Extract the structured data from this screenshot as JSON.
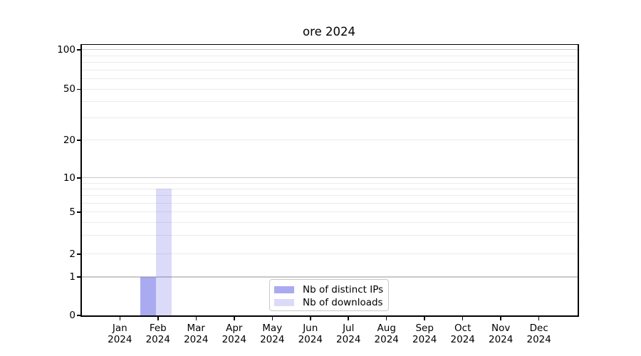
{
  "chart_data": {
    "type": "bar",
    "title": "ore 2024",
    "categories": [
      "Jan",
      "Feb",
      "Mar",
      "Apr",
      "May",
      "Jun",
      "Jul",
      "Aug",
      "Sep",
      "Oct",
      "Nov",
      "Dec"
    ],
    "x_tick_second_line": "2024",
    "series": [
      {
        "name": "Nb of distinct IPs",
        "color": "rgba(100,100,230,0.55)",
        "values": [
          0,
          1,
          0,
          0,
          0,
          0,
          0,
          0,
          0,
          0,
          0,
          0
        ]
      },
      {
        "name": "Nb of downloads",
        "color": "rgba(100,100,230,0.23)",
        "values": [
          0,
          8,
          0,
          0,
          0,
          0,
          0,
          0,
          0,
          0,
          0,
          0
        ]
      }
    ],
    "y_axis": {
      "scale": "symlog",
      "ticks": [
        0,
        1,
        2,
        5,
        10,
        20,
        50,
        100
      ],
      "minor_gridlines": [
        2,
        3,
        4,
        5,
        6,
        7,
        8,
        9,
        20,
        30,
        40,
        50,
        60,
        70,
        80,
        90
      ],
      "major_gridlines": [
        1,
        10,
        100
      ],
      "range": [
        0,
        117
      ]
    },
    "x_axis": {
      "label": "",
      "tick_count": 12
    },
    "legend": {
      "position": "lower center",
      "entries": [
        "Nb of distinct IPs",
        "Nb of downloads"
      ]
    },
    "grid": true,
    "colors": {
      "axis": "#000000",
      "minor_grid": "#ebebeb",
      "major_grid": "#c9c9c9",
      "background": "#ffffff"
    }
  }
}
